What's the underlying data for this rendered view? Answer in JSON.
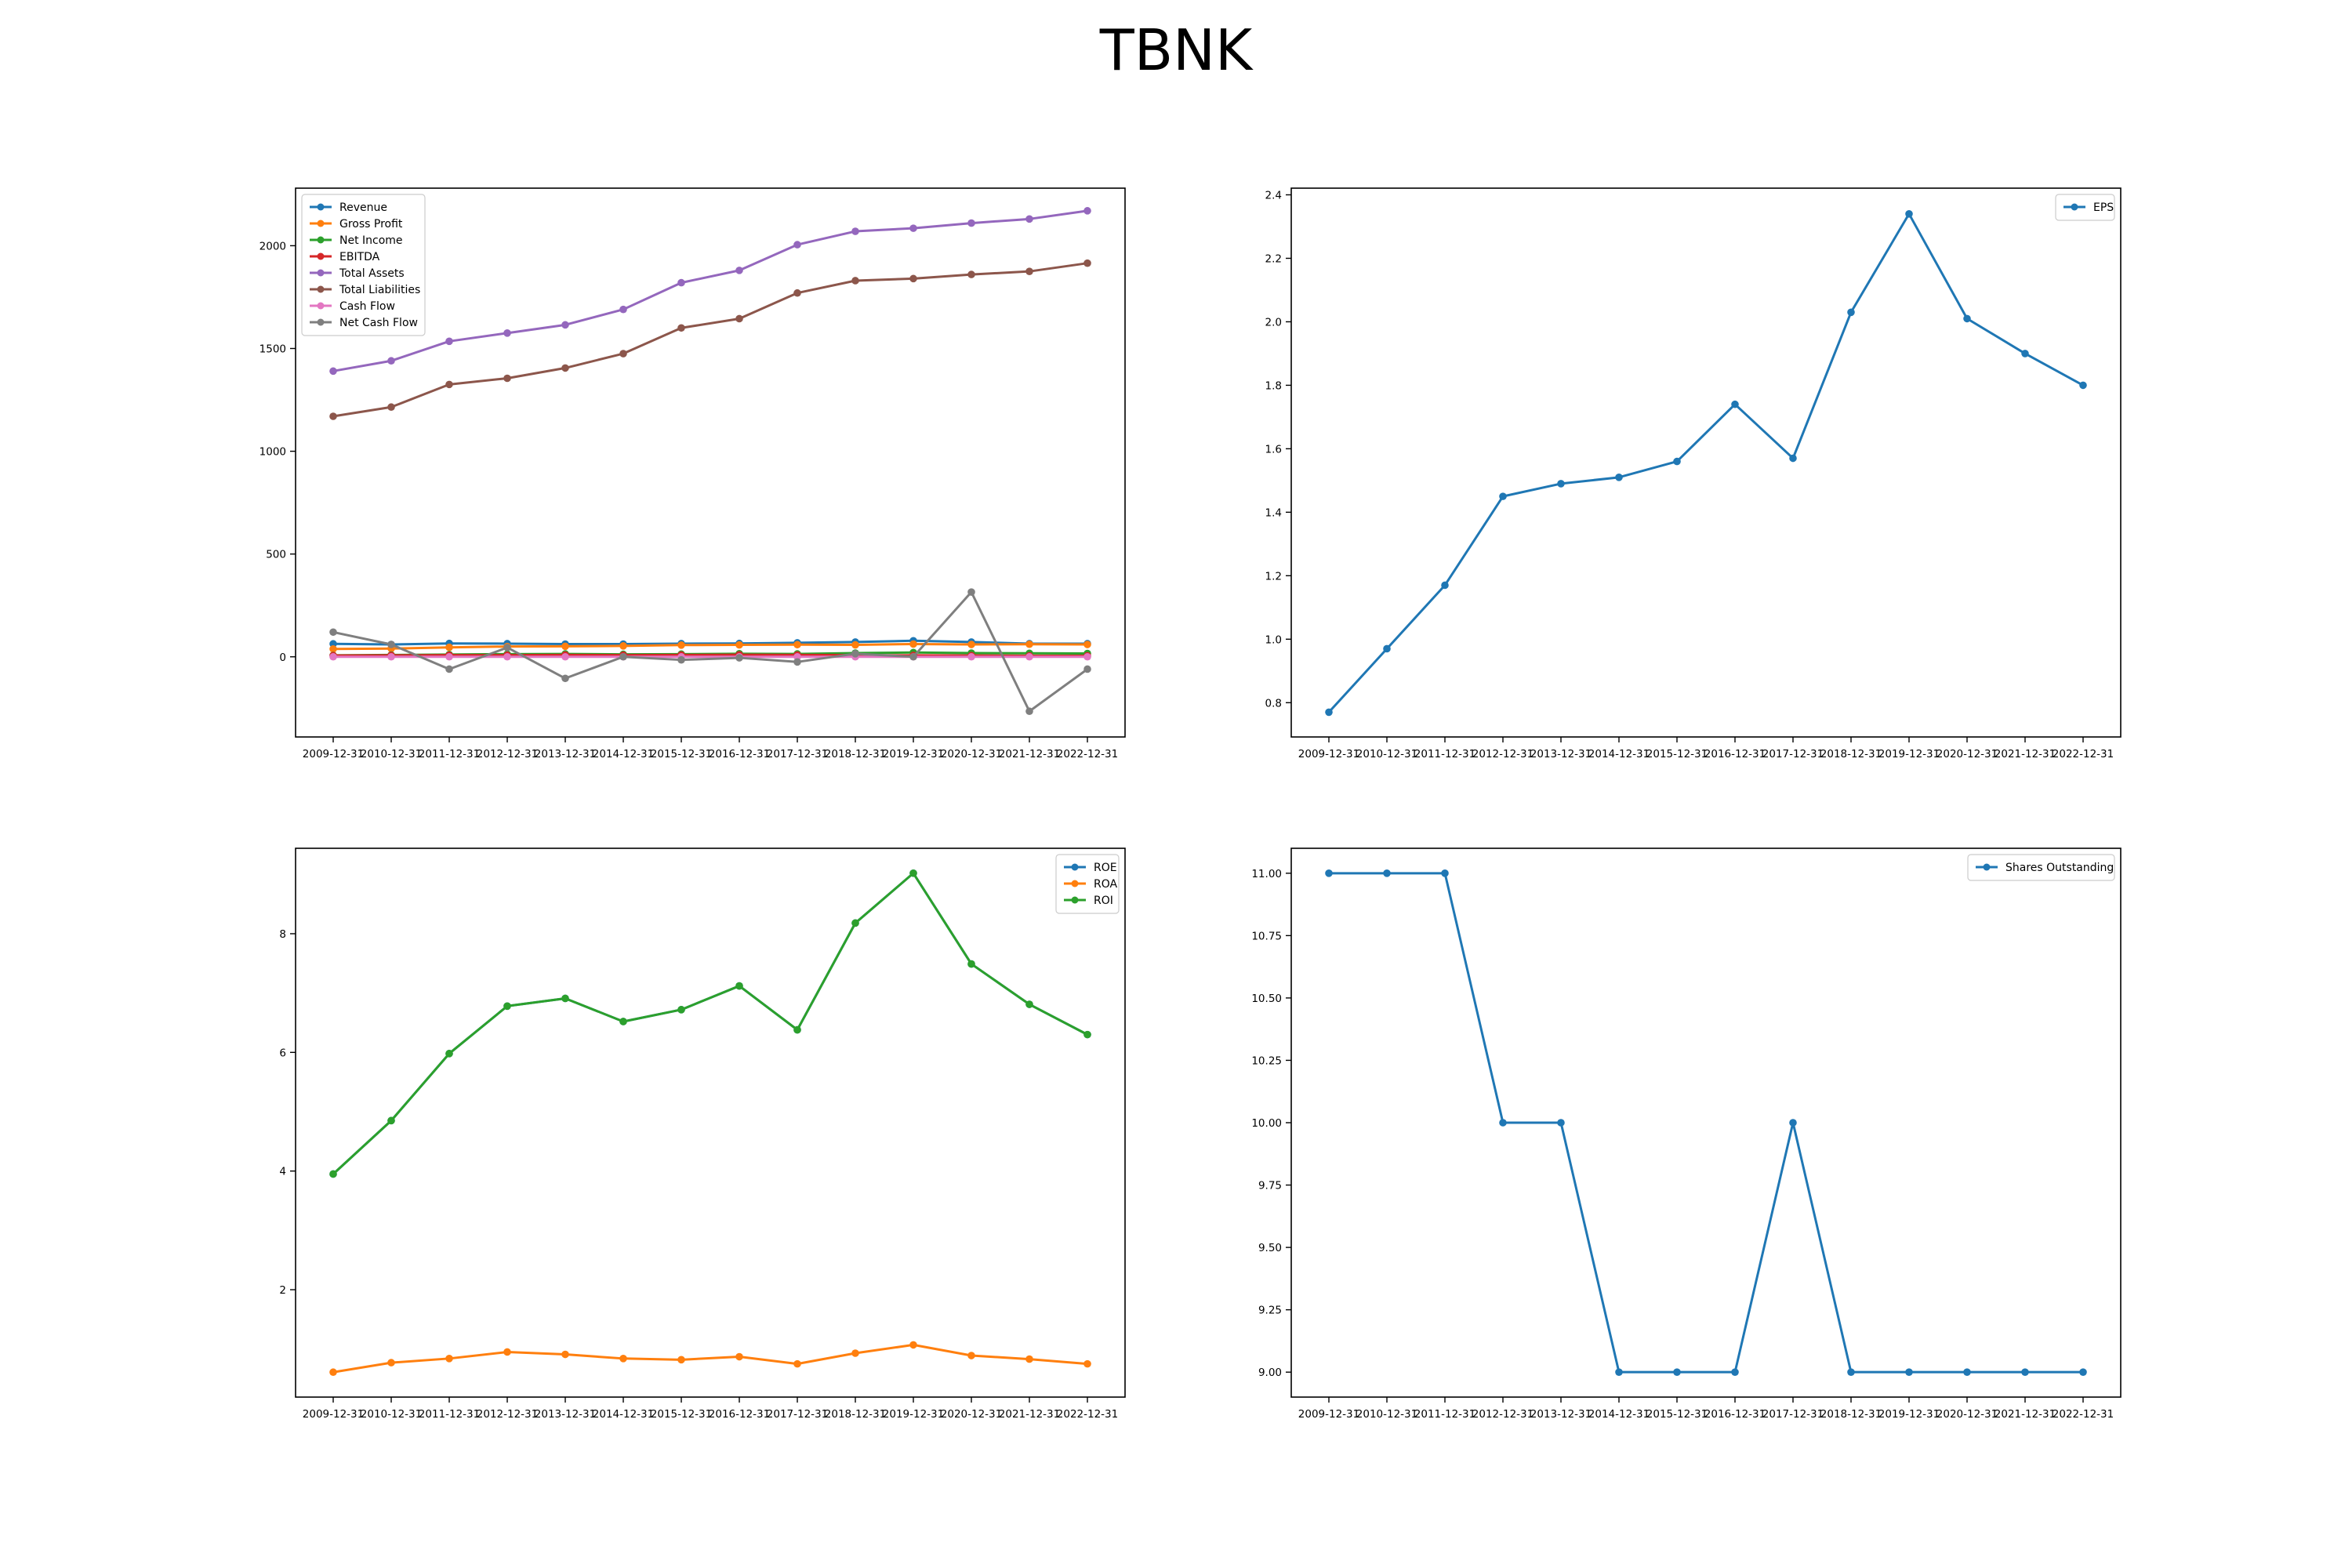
{
  "title": "TBNK",
  "colors": {
    "blue": "#1f77b4",
    "orange": "#ff7f0e",
    "green": "#2ca02c",
    "red": "#d62728",
    "purple": "#9467bd",
    "brown": "#8c564b",
    "pink": "#e377c2",
    "gray": "#7f7f7f"
  },
  "chart_data": [
    {
      "type": "line",
      "title": "",
      "xlabel": "",
      "ylabel": "",
      "categories": [
        "2009-12-31",
        "2010-12-31",
        "2011-12-31",
        "2012-12-31",
        "2013-12-31",
        "2014-12-31",
        "2015-12-31",
        "2016-12-31",
        "2017-12-31",
        "2018-12-31",
        "2019-12-31",
        "2020-12-31",
        "2021-12-31",
        "2022-12-31"
      ],
      "ylim": [
        -390,
        2280
      ],
      "yticks": [
        0,
        500,
        1000,
        1500,
        2000
      ],
      "ytick_labels": [
        "0",
        "500",
        "1000",
        "1500",
        "2000"
      ],
      "legend_position": "upper left",
      "series": [
        {
          "name": "Revenue",
          "color": "#1f77b4",
          "values": [
            63,
            60,
            65,
            64,
            62,
            62,
            64,
            65,
            68,
            72,
            78,
            72,
            64,
            64
          ]
        },
        {
          "name": "Gross Profit",
          "color": "#ff7f0e",
          "values": [
            38,
            40,
            46,
            50,
            51,
            53,
            57,
            58,
            59,
            58,
            62,
            60,
            61,
            60
          ]
        },
        {
          "name": "Net Income",
          "color": "#2ca02c",
          "values": [
            7,
            9,
            11,
            13,
            14,
            12,
            13,
            15,
            14,
            18,
            21,
            18,
            17,
            16
          ]
        },
        {
          "name": "EBITDA",
          "color": "#d62728",
          "values": [
            6,
            7,
            8,
            8,
            9,
            8,
            9,
            10,
            9,
            8,
            7,
            6,
            5,
            5
          ]
        },
        {
          "name": "Total Assets",
          "color": "#9467bd",
          "values": [
            1390,
            1440,
            1535,
            1575,
            1615,
            1690,
            1820,
            1880,
            2005,
            2070,
            2085,
            2110,
            2130,
            2170
          ]
        },
        {
          "name": "Total Liabilities",
          "color": "#8c564b",
          "values": [
            1170,
            1215,
            1325,
            1355,
            1405,
            1475,
            1600,
            1645,
            1770,
            1830,
            1840,
            1860,
            1875,
            1915
          ]
        },
        {
          "name": "Cash Flow",
          "color": "#e377c2",
          "values": [
            0,
            0,
            0,
            0,
            0,
            0,
            0,
            0,
            0,
            0,
            0,
            0,
            0,
            0
          ]
        },
        {
          "name": "Net Cash Flow",
          "color": "#7f7f7f",
          "values": [
            120,
            60,
            -60,
            45,
            -105,
            0,
            -15,
            -5,
            -25,
            15,
            0,
            315,
            -265,
            -60
          ]
        }
      ]
    },
    {
      "type": "line",
      "title": "",
      "xlabel": "",
      "ylabel": "",
      "categories": [
        "2009-12-31",
        "2010-12-31",
        "2011-12-31",
        "2012-12-31",
        "2013-12-31",
        "2014-12-31",
        "2015-12-31",
        "2016-12-31",
        "2017-12-31",
        "2018-12-31",
        "2019-12-31",
        "2020-12-31",
        "2021-12-31",
        "2022-12-31"
      ],
      "ylim": [
        0.692,
        2.421
      ],
      "yticks": [
        0.8,
        1.0,
        1.2,
        1.4,
        1.6,
        1.8,
        2.0,
        2.2,
        2.4
      ],
      "ytick_labels": [
        "0.8",
        "1.0",
        "1.2",
        "1.4",
        "1.6",
        "1.8",
        "2.0",
        "2.2",
        "2.4"
      ],
      "legend_position": "upper right",
      "series": [
        {
          "name": "EPS",
          "color": "#1f77b4",
          "values": [
            0.77,
            0.97,
            1.17,
            1.45,
            1.49,
            1.51,
            1.56,
            1.74,
            1.57,
            2.03,
            2.34,
            2.01,
            1.9,
            1.8
          ]
        }
      ]
    },
    {
      "type": "line",
      "title": "",
      "xlabel": "",
      "ylabel": "",
      "categories": [
        "2009-12-31",
        "2010-12-31",
        "2011-12-31",
        "2012-12-31",
        "2013-12-31",
        "2014-12-31",
        "2015-12-31",
        "2016-12-31",
        "2017-12-31",
        "2018-12-31",
        "2019-12-31",
        "2020-12-31",
        "2021-12-31",
        "2022-12-31"
      ],
      "ylim": [
        0.19,
        9.44
      ],
      "yticks": [
        2,
        4,
        6,
        8
      ],
      "ytick_labels": [
        "2",
        "4",
        "6",
        "8"
      ],
      "legend_position": "upper right",
      "series": [
        {
          "name": "ROE",
          "color": "#1f77b4",
          "values": [
            3.95,
            4.85,
            5.98,
            6.78,
            6.91,
            6.52,
            6.72,
            7.12,
            6.38,
            8.18,
            9.02,
            7.49,
            6.81,
            6.3
          ]
        },
        {
          "name": "ROA",
          "color": "#ff7f0e",
          "values": [
            0.61,
            0.77,
            0.84,
            0.95,
            0.91,
            0.84,
            0.82,
            0.87,
            0.75,
            0.93,
            1.07,
            0.89,
            0.83,
            0.75
          ]
        },
        {
          "name": "ROI",
          "color": "#2ca02c",
          "values": [
            3.95,
            4.85,
            5.98,
            6.78,
            6.91,
            6.52,
            6.72,
            7.12,
            6.38,
            8.18,
            9.02,
            7.49,
            6.81,
            6.3
          ]
        }
      ]
    },
    {
      "type": "line",
      "title": "",
      "xlabel": "",
      "ylabel": "",
      "categories": [
        "2009-12-31",
        "2010-12-31",
        "2011-12-31",
        "2012-12-31",
        "2013-12-31",
        "2014-12-31",
        "2015-12-31",
        "2016-12-31",
        "2017-12-31",
        "2018-12-31",
        "2019-12-31",
        "2020-12-31",
        "2021-12-31",
        "2022-12-31"
      ],
      "ylim": [
        8.9,
        11.1
      ],
      "yticks": [
        9.0,
        9.25,
        9.5,
        9.75,
        10.0,
        10.25,
        10.5,
        10.75,
        11.0
      ],
      "ytick_labels": [
        "9.00",
        "9.25",
        "9.50",
        "9.75",
        "10.00",
        "10.25",
        "10.50",
        "10.75",
        "11.00"
      ],
      "legend_position": "upper right",
      "series": [
        {
          "name": "Shares Outstanding",
          "color": "#1f77b4",
          "values": [
            11,
            11,
            11,
            10,
            10,
            9,
            9,
            9,
            10,
            9,
            9,
            9,
            9,
            9
          ]
        }
      ]
    }
  ]
}
